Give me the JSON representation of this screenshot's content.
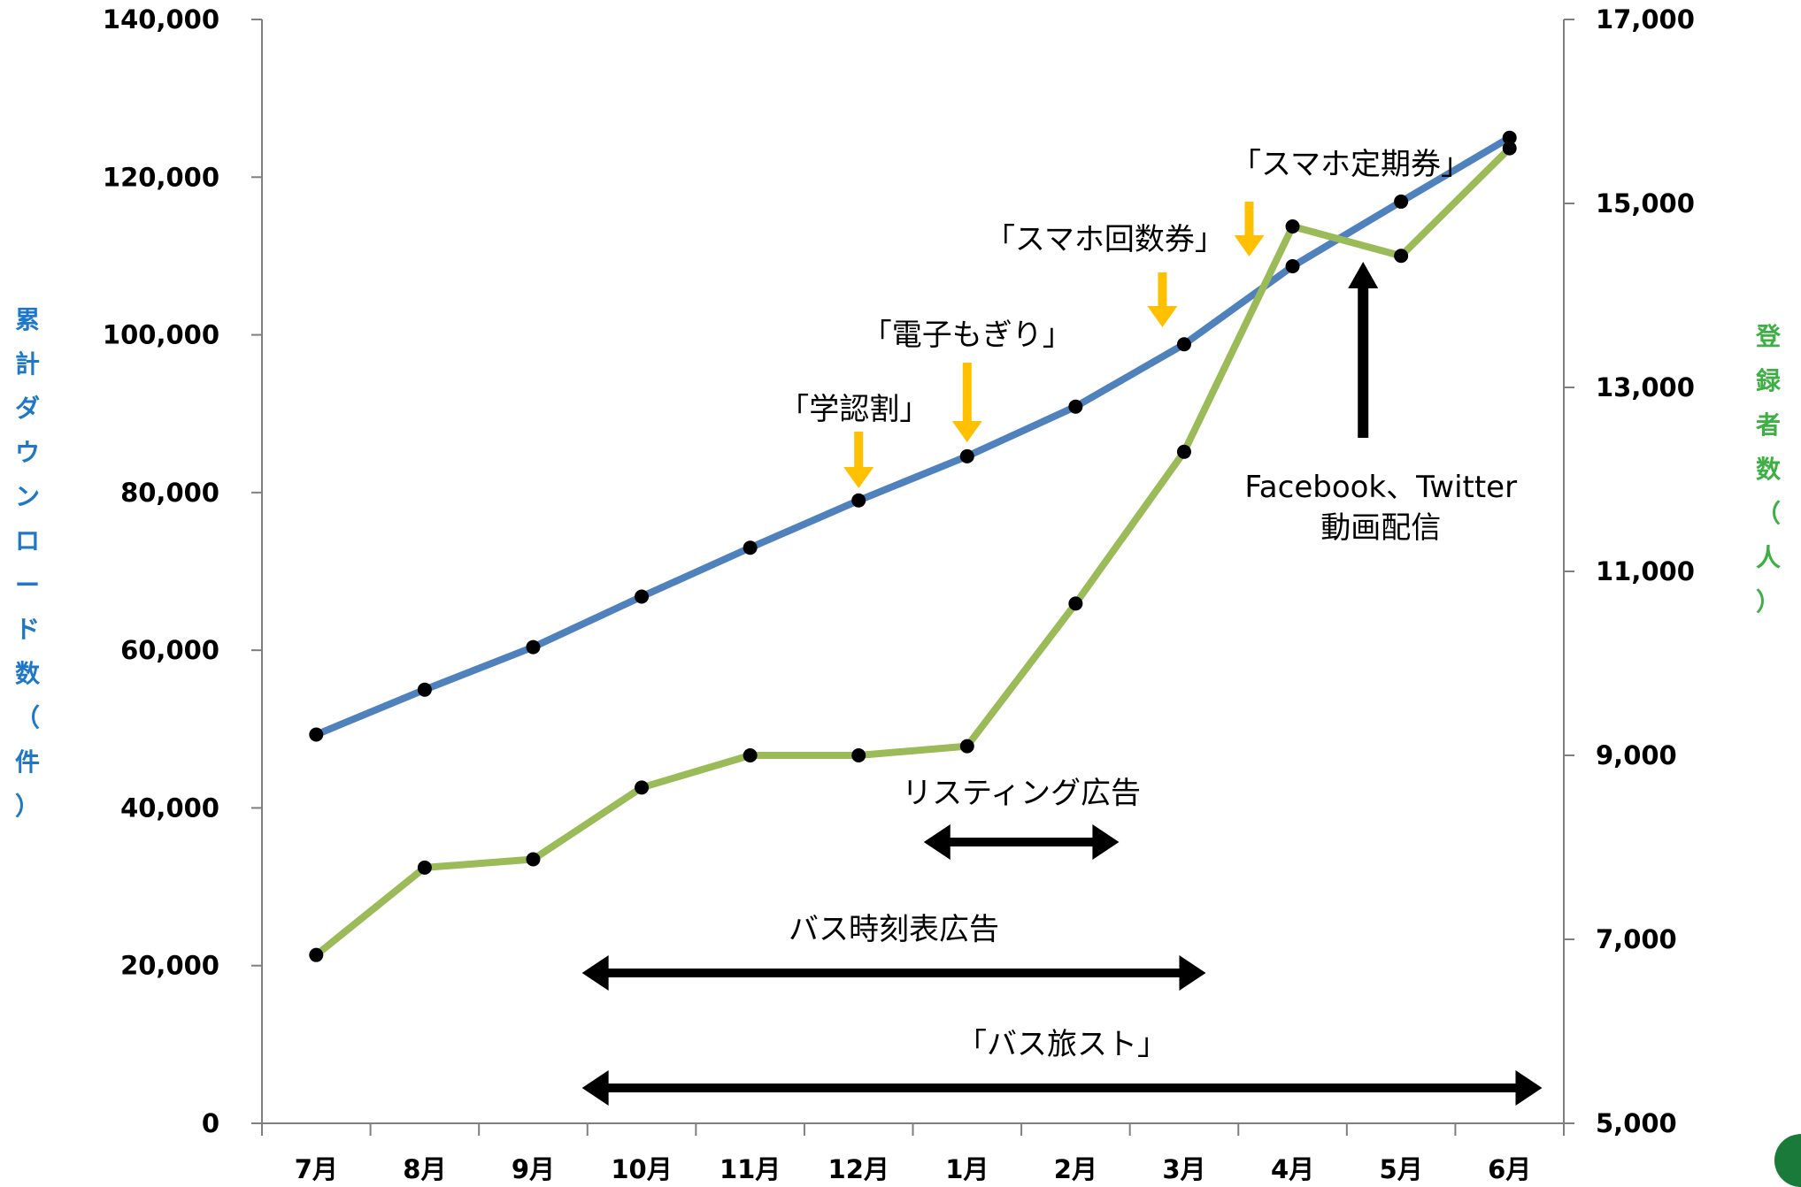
{
  "chart_data": {
    "type": "line",
    "categories": [
      "7月",
      "8月",
      "9月",
      "10月",
      "11月",
      "12月",
      "1月",
      "2月",
      "3月",
      "4月",
      "5月",
      "6月"
    ],
    "y_left": {
      "label": "累計ダウンロード数（件）",
      "ylim": [
        0,
        140000
      ],
      "ticks": [
        "0",
        "20,000",
        "40,000",
        "60,000",
        "80,000",
        "100,000",
        "120,000",
        "140,000"
      ],
      "tick_values": [
        0,
        20000,
        40000,
        60000,
        80000,
        100000,
        120000,
        140000
      ]
    },
    "y_right": {
      "label": "登録者数（人）",
      "ylim": [
        5000,
        17000
      ],
      "ticks": [
        "5,000",
        "7,000",
        "9,000",
        "11,000",
        "13,000",
        "15,000",
        "17,000"
      ],
      "tick_values": [
        5000,
        7000,
        9000,
        11000,
        13000,
        15000,
        17000
      ]
    },
    "series": [
      {
        "axis": "left",
        "color": "#4f81bd",
        "values": [
          49300,
          55000,
          60400,
          66800,
          73000,
          79000,
          84600,
          90900,
          98800,
          108700,
          116900,
          125000
        ]
      },
      {
        "axis": "right",
        "color": "#9bbb59",
        "values": [
          6830,
          7780,
          7870,
          8650,
          9000,
          9000,
          9100,
          10650,
          12300,
          14750,
          14430,
          15600
        ]
      }
    ],
    "annotations": {
      "events": [
        {
          "label": "「学認割」",
          "at": 5
        },
        {
          "label": "「電子もぎり」",
          "at": 6
        },
        {
          "label": "「スマホ回数券」",
          "at": 7.8
        },
        {
          "label": "「スマホ定期券」",
          "at": 8.6
        }
      ],
      "social": {
        "line1": "Facebook、Twitter",
        "line2": "動画配信",
        "at": 9.65
      },
      "campaigns": [
        {
          "label": "リスティング広告",
          "from": 5.6,
          "to": 7.4
        },
        {
          "label": "バス時刻表広告",
          "from": 2.45,
          "to": 8.2
        },
        {
          "label": "「バス旅スト」",
          "from": 2.45,
          "to": 11.3
        }
      ]
    }
  }
}
